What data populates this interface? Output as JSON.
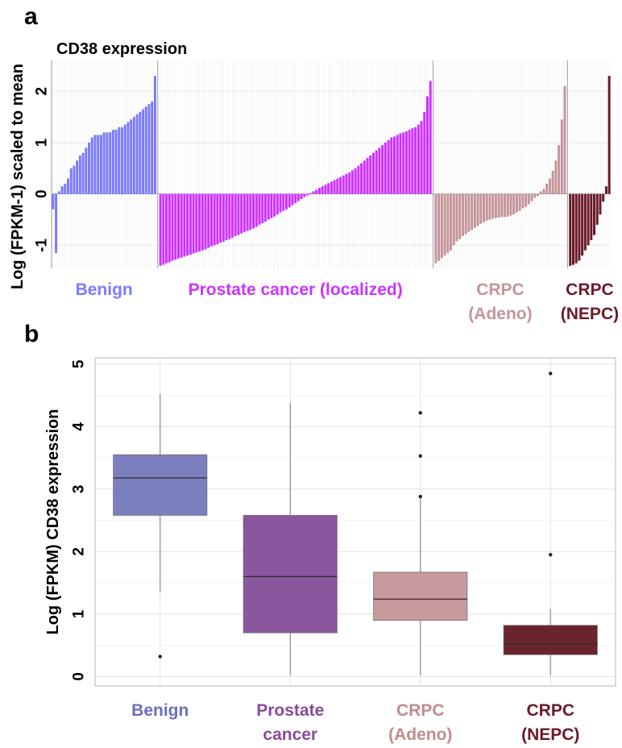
{
  "panels": {
    "a": "a",
    "b": "b"
  },
  "chart_data": [
    {
      "type": "bar",
      "title": "CD38 expression",
      "ylabel": "Log (FPKM-1) scaled to mean",
      "ylim": [
        -1.45,
        2.6
      ],
      "yticks": [
        -1,
        0,
        1,
        2
      ],
      "grid": true,
      "groups": [
        {
          "name": "Benign",
          "label_lines": [
            "Benign"
          ],
          "color": "#7b7bff",
          "values": [
            -0.3,
            -1.15,
            0.05,
            0.15,
            0.2,
            0.3,
            0.5,
            0.55,
            0.65,
            0.75,
            0.8,
            0.9,
            1.0,
            1.1,
            1.15,
            1.15,
            1.15,
            1.2,
            1.2,
            1.2,
            1.25,
            1.25,
            1.3,
            1.3,
            1.35,
            1.4,
            1.45,
            1.5,
            1.55,
            1.6,
            1.65,
            1.7,
            1.75,
            1.8,
            2.3
          ]
        },
        {
          "name": "Prostate cancer (localized)",
          "label_lines": [
            "Prostate cancer (localized)"
          ],
          "color": "#cc33ff",
          "values": [
            -1.4,
            -1.38,
            -1.35,
            -1.33,
            -1.3,
            -1.28,
            -1.26,
            -1.24,
            -1.22,
            -1.2,
            -1.18,
            -1.16,
            -1.14,
            -1.12,
            -1.1,
            -1.08,
            -1.05,
            -1.02,
            -1.0,
            -0.98,
            -0.95,
            -0.93,
            -0.9,
            -0.88,
            -0.85,
            -0.82,
            -0.8,
            -0.77,
            -0.74,
            -0.72,
            -0.7,
            -0.67,
            -0.64,
            -0.6,
            -0.57,
            -0.54,
            -0.5,
            -0.47,
            -0.44,
            -0.4,
            -0.36,
            -0.33,
            -0.3,
            -0.26,
            -0.22,
            -0.18,
            -0.14,
            -0.1,
            -0.06,
            -0.03,
            0.02,
            0.05,
            0.08,
            0.12,
            0.15,
            0.18,
            0.21,
            0.24,
            0.27,
            0.3,
            0.33,
            0.36,
            0.39,
            0.42,
            0.46,
            0.5,
            0.55,
            0.6,
            0.65,
            0.7,
            0.75,
            0.8,
            0.85,
            0.9,
            0.95,
            1.0,
            1.05,
            1.1,
            1.12,
            1.15,
            1.18,
            1.2,
            1.22,
            1.25,
            1.28,
            1.3,
            1.35,
            1.42,
            1.6,
            1.9,
            2.2
          ]
        },
        {
          "name": "CRPC (Adeno)",
          "label_lines": [
            "CRPC",
            "(Adeno)"
          ],
          "color": "#c4959b",
          "values": [
            -1.35,
            -1.3,
            -1.25,
            -1.2,
            -1.15,
            -1.1,
            -1.0,
            -0.92,
            -0.88,
            -0.82,
            -0.78,
            -0.74,
            -0.7,
            -0.66,
            -0.62,
            -0.58,
            -0.55,
            -0.52,
            -0.5,
            -0.48,
            -0.47,
            -0.46,
            -0.45,
            -0.45,
            -0.44,
            -0.42,
            -0.4,
            -0.36,
            -0.33,
            -0.28,
            -0.25,
            -0.2,
            -0.14,
            -0.08,
            -0.04,
            0.05,
            0.1,
            0.2,
            0.3,
            0.45,
            0.65,
            0.95,
            1.45,
            2.1
          ]
        },
        {
          "name": "CRPC (NEPC)",
          "label_lines": [
            "CRPC",
            "(NEPC)"
          ],
          "color": "#6b1a2a",
          "values": [
            -1.4,
            -1.38,
            -1.35,
            -1.3,
            -1.2,
            -1.1,
            -1.0,
            -0.9,
            -0.8,
            -0.6,
            -0.4,
            -0.15,
            0.15,
            2.3
          ]
        }
      ]
    },
    {
      "type": "box",
      "ylabel": "Log (FPKM) CD38 expression",
      "ylim": [
        -0.15,
        5.1
      ],
      "yticks": [
        0,
        1,
        2,
        3,
        4,
        5
      ],
      "grid": true,
      "boxes": [
        {
          "name": "Benign",
          "label_lines": [
            "Benign"
          ],
          "color": "#7b7fbf",
          "text_color": "#6b6fb8",
          "min": 1.35,
          "q1": 2.58,
          "median": 3.18,
          "q3": 3.55,
          "max": 4.52,
          "outliers": [
            0.32
          ]
        },
        {
          "name": "Prostate cancer",
          "label_lines": [
            "Prostate",
            "cancer"
          ],
          "color": "#8a569d",
          "text_color": "#8a4a9a",
          "min": 0.02,
          "q1": 0.7,
          "median": 1.6,
          "q3": 2.58,
          "max": 4.38,
          "outliers": []
        },
        {
          "name": "CRPC (Adeno)",
          "label_lines": [
            "CRPC",
            "(Adeno)"
          ],
          "color": "#c79a9d",
          "text_color": "#c08c90",
          "min": 0.02,
          "q1": 0.9,
          "median": 1.24,
          "q3": 1.67,
          "max": 2.85,
          "outliers": [
            2.88,
            3.53,
            4.22
          ]
        },
        {
          "name": "CRPC (NEPC)",
          "label_lines": [
            "CRPC",
            "(NEPC)"
          ],
          "color": "#6b2330",
          "text_color": "#6b1a2a",
          "min": 0.02,
          "q1": 0.35,
          "median": 0.52,
          "q3": 0.82,
          "max": 1.08,
          "outliers": [
            1.95,
            4.85
          ]
        }
      ]
    }
  ]
}
